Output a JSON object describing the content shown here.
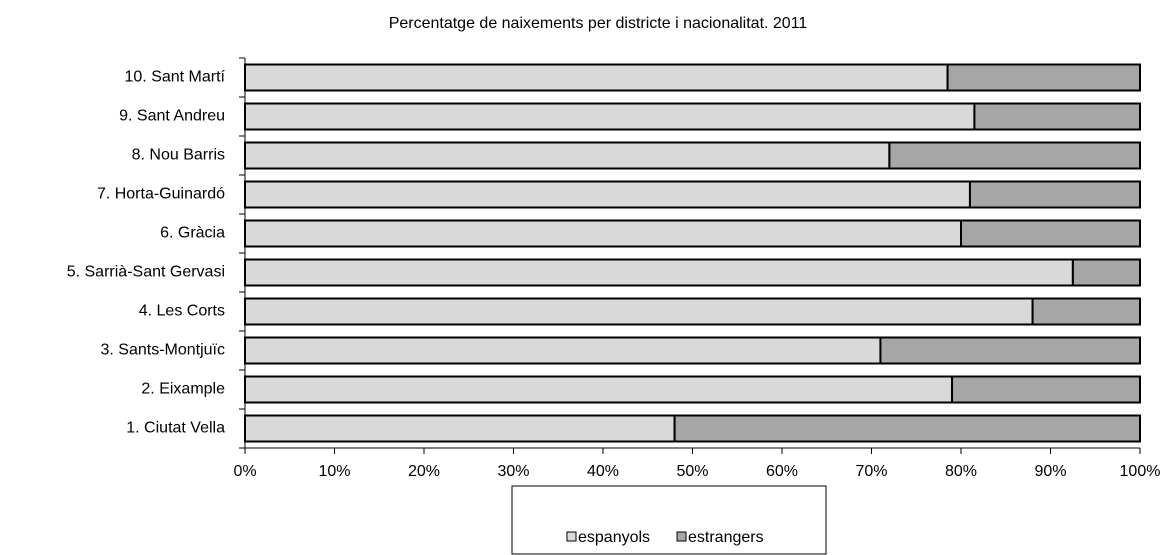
{
  "chart_data": {
    "type": "stacked-bar-horizontal",
    "title": "Percentatge de naixements per districte i nacionalitat. 2011",
    "categories": [
      "1. Ciutat Vella",
      "2. Eixample",
      "3. Sants-Montjuïc",
      "4. Les Corts",
      "5. Sarrià-Sant Gervasi",
      "6. Gràcia",
      "7. Horta-Guinardó",
      "8. Nou Barris",
      "9. Sant Andreu",
      "10. Sant Martí"
    ],
    "series": [
      {
        "name": "espanyols",
        "color": "#d9d9d9",
        "values": [
          48,
          79,
          71,
          88,
          92.5,
          80,
          81,
          72,
          81.5,
          78.5
        ]
      },
      {
        "name": "estrangers",
        "color": "#a6a6a6",
        "values": [
          52,
          21,
          29,
          12,
          7.5,
          20,
          19,
          28,
          18.5,
          21.5
        ]
      }
    ],
    "xlim": [
      0,
      100
    ],
    "xticks": [
      {
        "value": 0,
        "label": "0%"
      },
      {
        "value": 10,
        "label": "10%"
      },
      {
        "value": 20,
        "label": "20%"
      },
      {
        "value": 30,
        "label": "30%"
      },
      {
        "value": 40,
        "label": "40%"
      },
      {
        "value": 50,
        "label": "50%"
      },
      {
        "value": 60,
        "label": "60%"
      },
      {
        "value": 70,
        "label": "70%"
      },
      {
        "value": 80,
        "label": "80%"
      },
      {
        "value": 90,
        "label": "90%"
      },
      {
        "value": 100,
        "label": "100%"
      }
    ],
    "legend": "bottom"
  }
}
